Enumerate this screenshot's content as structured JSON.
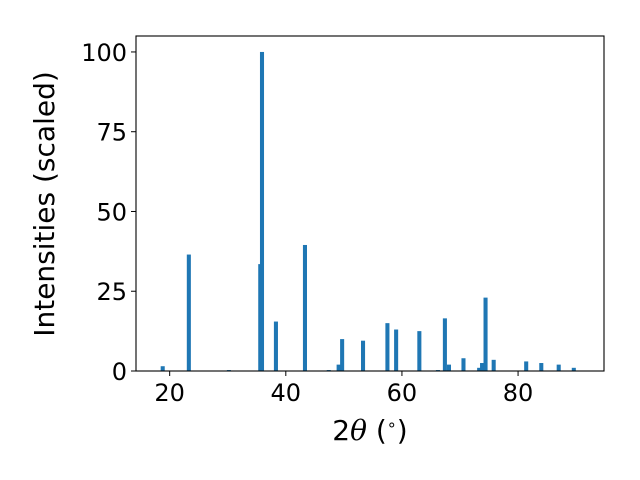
{
  "chart_data": {
    "type": "bar",
    "title": "",
    "xlabel_parts": [
      "2",
      "θ",
      " (",
      "∘",
      ")"
    ],
    "ylabel": "Intensities (scaled)",
    "xlim": [
      14.2,
      94.8
    ],
    "ylim": [
      0,
      105
    ],
    "x_ticks": [
      20,
      40,
      60,
      80
    ],
    "y_ticks": [
      0,
      25,
      50,
      75,
      100
    ],
    "grid": false,
    "bar_width": 0.7,
    "bar_color": "#1f77b4",
    "series": [
      {
        "points": [
          {
            "x": 18.8,
            "y": 1.5
          },
          {
            "x": 23.3,
            "y": 36.5
          },
          {
            "x": 30.2,
            "y": 0.3
          },
          {
            "x": 35.6,
            "y": 33.5
          },
          {
            "x": 35.9,
            "y": 100
          },
          {
            "x": 38.3,
            "y": 15.5
          },
          {
            "x": 43.3,
            "y": 39.5
          },
          {
            "x": 47.4,
            "y": 0.3
          },
          {
            "x": 49.1,
            "y": 2.0
          },
          {
            "x": 49.7,
            "y": 10.0
          },
          {
            "x": 53.3,
            "y": 9.5
          },
          {
            "x": 57.5,
            "y": 15.0
          },
          {
            "x": 59.0,
            "y": 13.0
          },
          {
            "x": 63.0,
            "y": 12.5
          },
          {
            "x": 66.2,
            "y": 0.3
          },
          {
            "x": 67.4,
            "y": 16.5
          },
          {
            "x": 68.1,
            "y": 2.0
          },
          {
            "x": 70.6,
            "y": 4.0
          },
          {
            "x": 73.3,
            "y": 1.0
          },
          {
            "x": 73.8,
            "y": 2.5
          },
          {
            "x": 74.4,
            "y": 23.0
          },
          {
            "x": 75.8,
            "y": 3.5
          },
          {
            "x": 81.4,
            "y": 3.0
          },
          {
            "x": 84.0,
            "y": 2.5
          },
          {
            "x": 87.0,
            "y": 2.0
          },
          {
            "x": 89.6,
            "y": 1.0
          }
        ]
      }
    ]
  }
}
